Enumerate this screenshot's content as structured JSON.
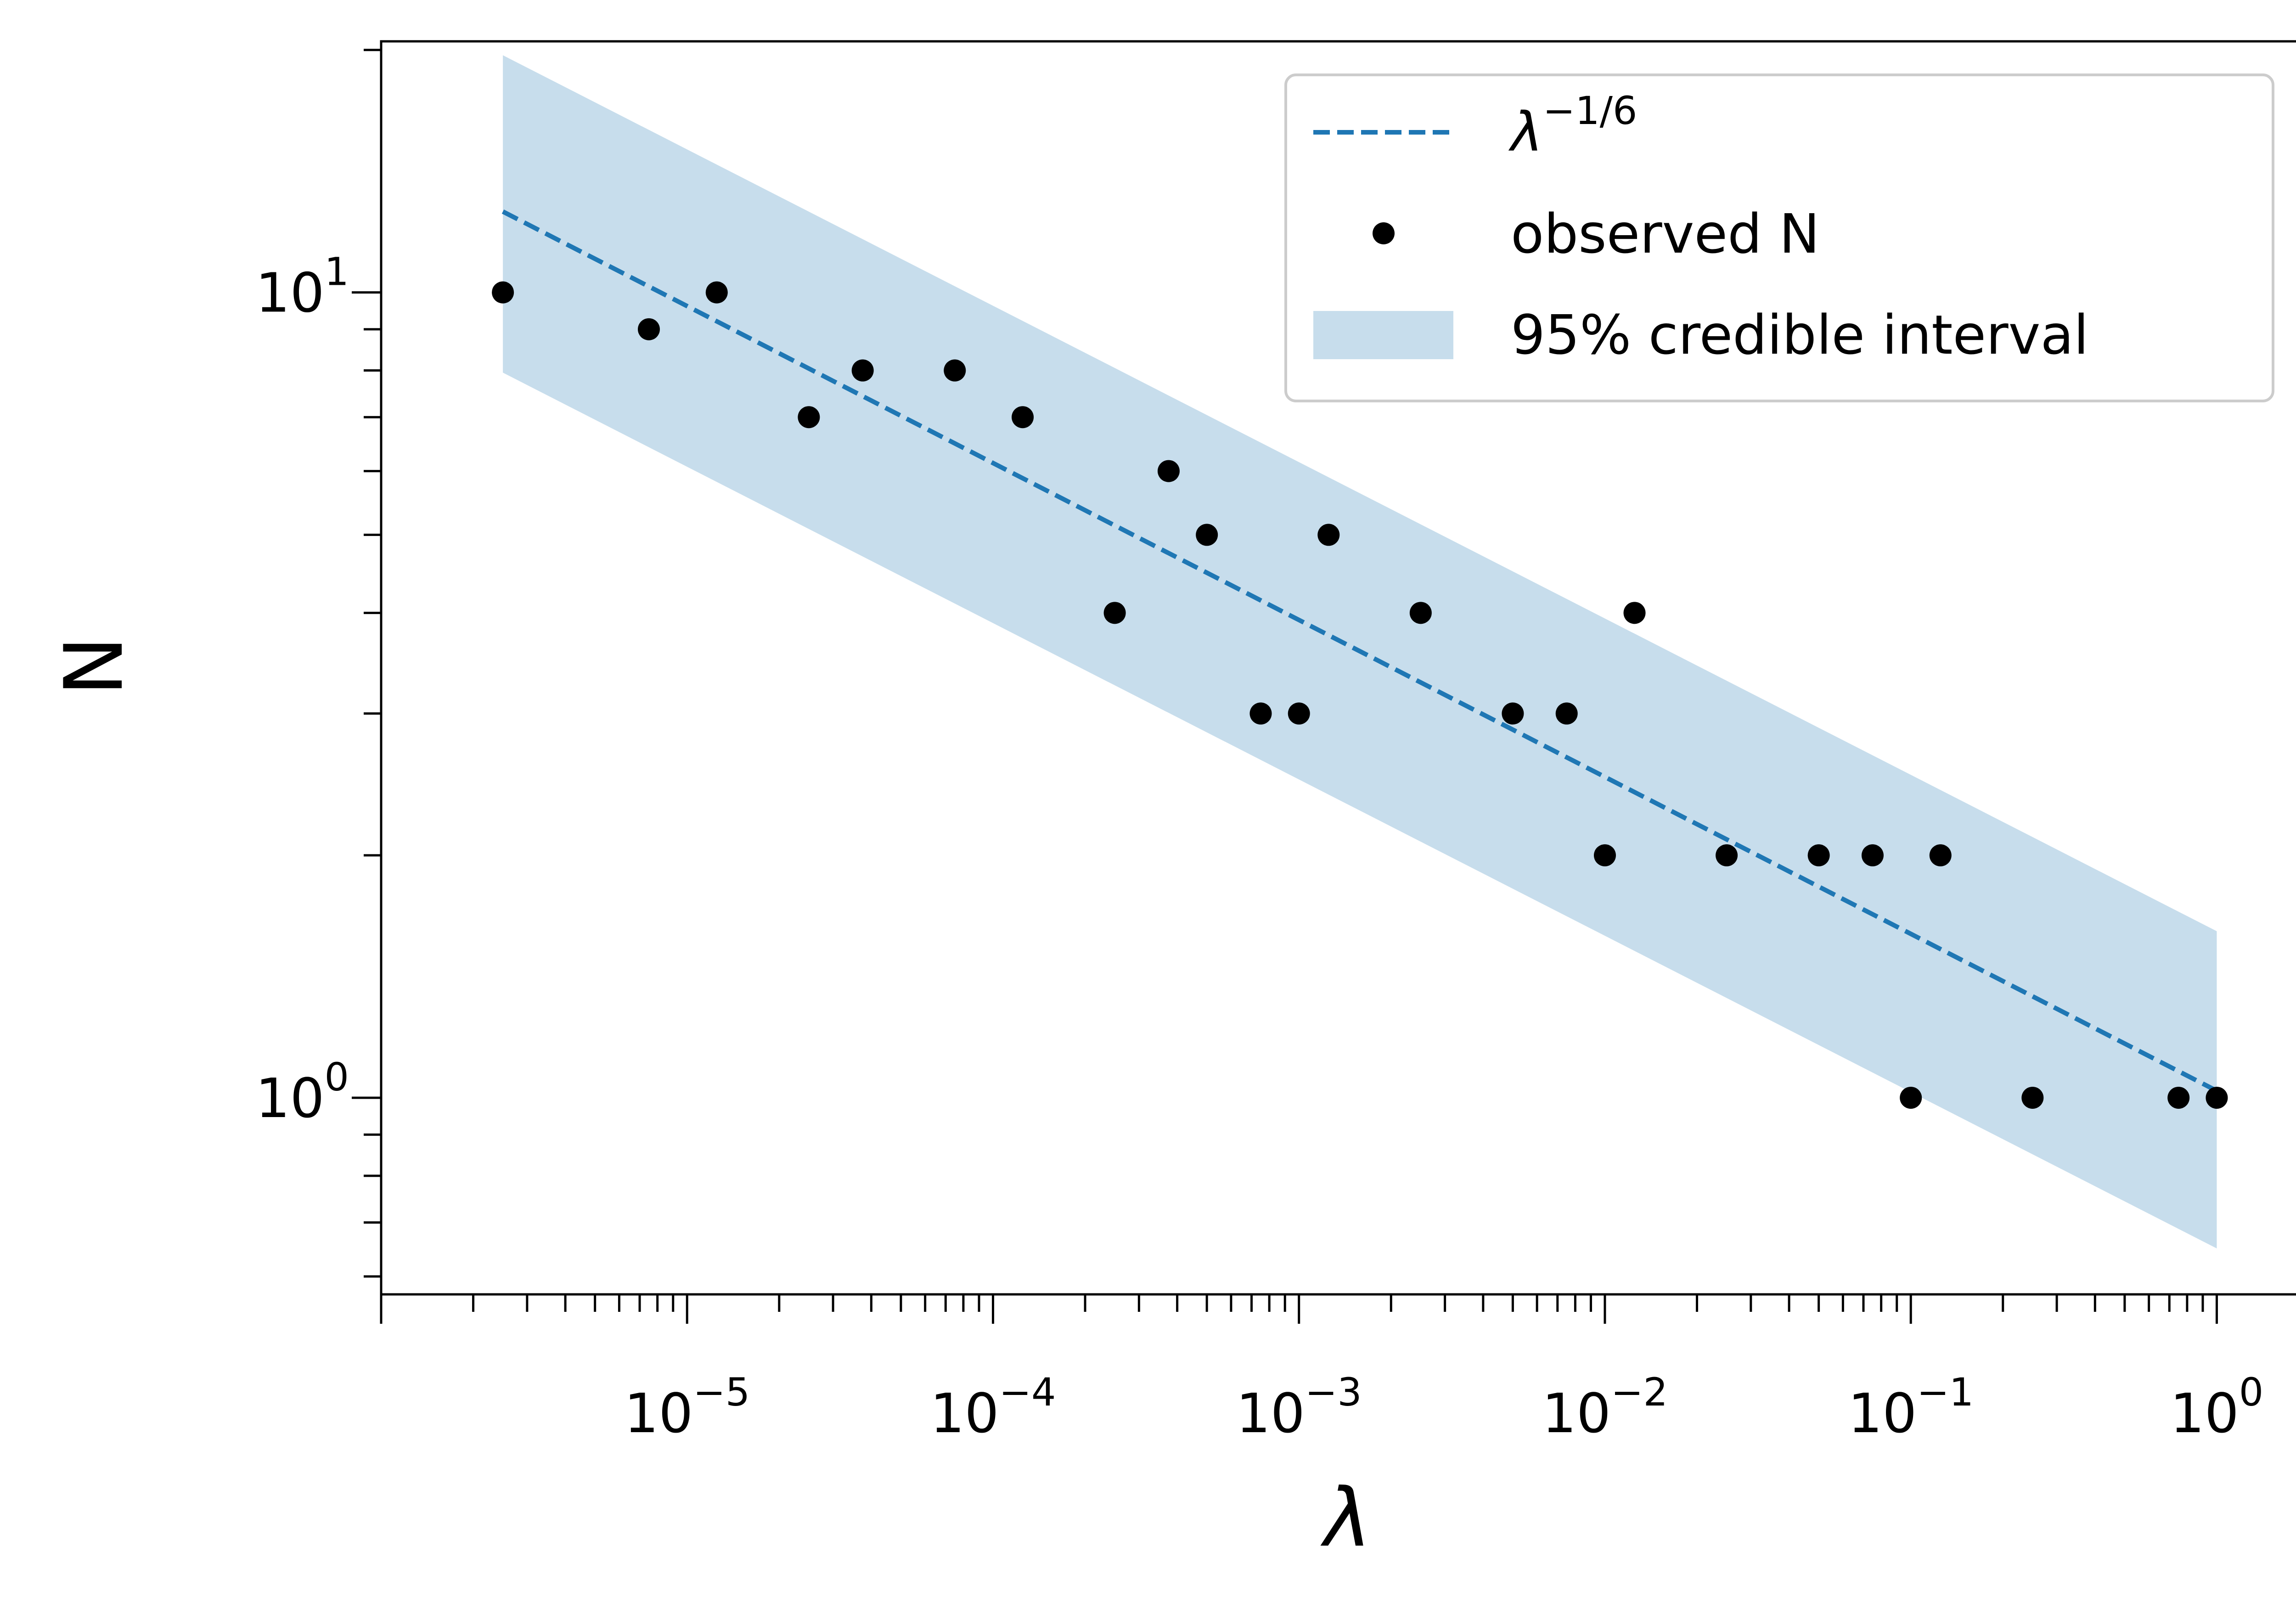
{
  "chart_data": {
    "type": "scatter",
    "title": "",
    "xlabel": "λ",
    "ylabel": "N",
    "xscale": "log",
    "yscale": "log",
    "xlim": [
      1e-06,
      2.0
    ],
    "ylim": [
      0.57,
      20.5
    ],
    "grid": false,
    "legend_position": "top-right",
    "x_ticks": [
      {
        "value": 1e-05,
        "base": "10",
        "exp": "−5"
      },
      {
        "value": 0.0001,
        "base": "10",
        "exp": "−4"
      },
      {
        "value": 0.001,
        "base": "10",
        "exp": "−3"
      },
      {
        "value": 0.01,
        "base": "10",
        "exp": "−2"
      },
      {
        "value": 0.1,
        "base": "10",
        "exp": "−1"
      },
      {
        "value": 1,
        "base": "10",
        "exp": "0"
      }
    ],
    "y_ticks": [
      {
        "value": 1,
        "base": "10",
        "exp": "0"
      },
      {
        "value": 10,
        "base": "10",
        "exp": "1"
      }
    ],
    "series": [
      {
        "kind": "line",
        "label_base": "λ",
        "label_exp": "−1/6",
        "color": "#1f77b4",
        "style": "dashed",
        "x": [
          2.5e-06,
          1.0
        ],
        "y": [
          12.6,
          1.02
        ]
      },
      {
        "kind": "scatter",
        "name": "observed N",
        "color": "#000000",
        "x": [
          2.5e-06,
          7.5e-06,
          1.25e-05,
          2.5e-05,
          3.75e-05,
          7.5e-05,
          0.000125,
          0.00025,
          0.000375,
          0.0005,
          0.00075,
          0.001,
          0.00125,
          0.0025,
          0.005,
          0.0075,
          0.01,
          0.0125,
          0.025,
          0.05,
          0.075,
          0.1,
          0.125,
          0.25,
          0.75,
          1.0
        ],
        "y": [
          10,
          9,
          10,
          7,
          8,
          8,
          7,
          4,
          6,
          5,
          3,
          3,
          5,
          4,
          3,
          3,
          2,
          4,
          2,
          2,
          2,
          1,
          2,
          1,
          1,
          1
        ]
      },
      {
        "kind": "band",
        "name": "95% credible interval",
        "color": "#1f77b4",
        "opacity": 0.25,
        "x": [
          2.5e-06,
          1.0
        ],
        "lower": [
          7.95,
          0.65
        ],
        "upper": [
          19.7,
          1.61
        ]
      }
    ]
  }
}
